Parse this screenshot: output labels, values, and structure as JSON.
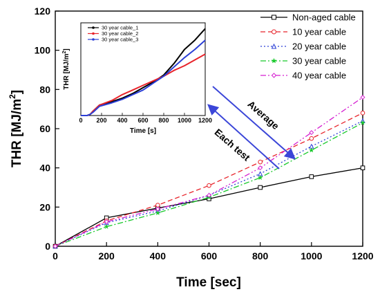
{
  "chart_data": {
    "type": "line",
    "xlabel": "Time [sec]",
    "ylabel_main": "THR [MJ/m",
    "ylabel_sup": "2",
    "ylabel_end": "]",
    "xlim": [
      0,
      1200
    ],
    "ylim": [
      0,
      120
    ],
    "x_ticks": [
      0,
      200,
      400,
      600,
      800,
      1000,
      1200
    ],
    "y_ticks": [
      0,
      20,
      40,
      60,
      80,
      100,
      120
    ],
    "x": [
      0,
      200,
      400,
      600,
      800,
      1000,
      1200
    ],
    "series": [
      {
        "name": "Non-aged cable",
        "color": "#000000",
        "dash": "",
        "marker": "square",
        "values": [
          0,
          14.5,
          19.5,
          24.2,
          30,
          35.5,
          40
        ]
      },
      {
        "name": "10 year cable",
        "color": "#e8232a",
        "dash": "7,4",
        "marker": "circle",
        "values": [
          0,
          13,
          21,
          31,
          43,
          55,
          68
        ]
      },
      {
        "name": "20 year cable",
        "color": "#2b3fd6",
        "dash": "2,3",
        "marker": "triangle",
        "values": [
          0,
          12,
          18,
          26,
          37,
          51,
          64
        ]
      },
      {
        "name": "30 year cable",
        "color": "#17c92a",
        "dash": "8,3,2,3",
        "marker": "star",
        "values": [
          0,
          10,
          17,
          25,
          35,
          49,
          63
        ]
      },
      {
        "name": "40 year cable",
        "color": "#d51fd1",
        "dash": "8,3,2,3,2,3",
        "marker": "diamond",
        "values": [
          0,
          12.5,
          19,
          26,
          40,
          58,
          76
        ]
      }
    ],
    "legend_position": "top-right",
    "annotations": [
      {
        "text": "Average"
      },
      {
        "text": "Each test"
      }
    ],
    "inset": {
      "ylabel": "THR [MJ/m",
      "ylabel_sup": "2",
      "ylabel_end": "]",
      "xlabel": "Time [s]",
      "xlim": [
        0,
        1200
      ],
      "x_ticks": [
        0,
        200,
        400,
        600,
        800,
        1000,
        1200
      ],
      "legend_position": "top-left",
      "x": [
        0,
        60,
        90,
        120,
        180,
        300,
        400,
        500,
        600,
        700,
        800,
        900,
        1000,
        1100,
        1200
      ],
      "series": [
        {
          "name": "30 year cable_1",
          "color": "#000000",
          "values": [
            0,
            0,
            1,
            4,
            9,
            12,
            15,
            19,
            24,
            29,
            35,
            45,
            57,
            65,
            75
          ]
        },
        {
          "name": "30 year cable_2",
          "color": "#e8232a",
          "values": [
            0,
            0,
            1,
            4,
            9,
            13,
            18,
            22,
            26,
            30,
            34,
            39,
            43,
            48,
            53
          ]
        },
        {
          "name": "30 year cable_3",
          "color": "#2b3fd6",
          "values": [
            0,
            0,
            1,
            3,
            8,
            11,
            14,
            18,
            22,
            28,
            34,
            42,
            50,
            57,
            65
          ]
        }
      ],
      "y_range": [
        0,
        80
      ]
    }
  }
}
